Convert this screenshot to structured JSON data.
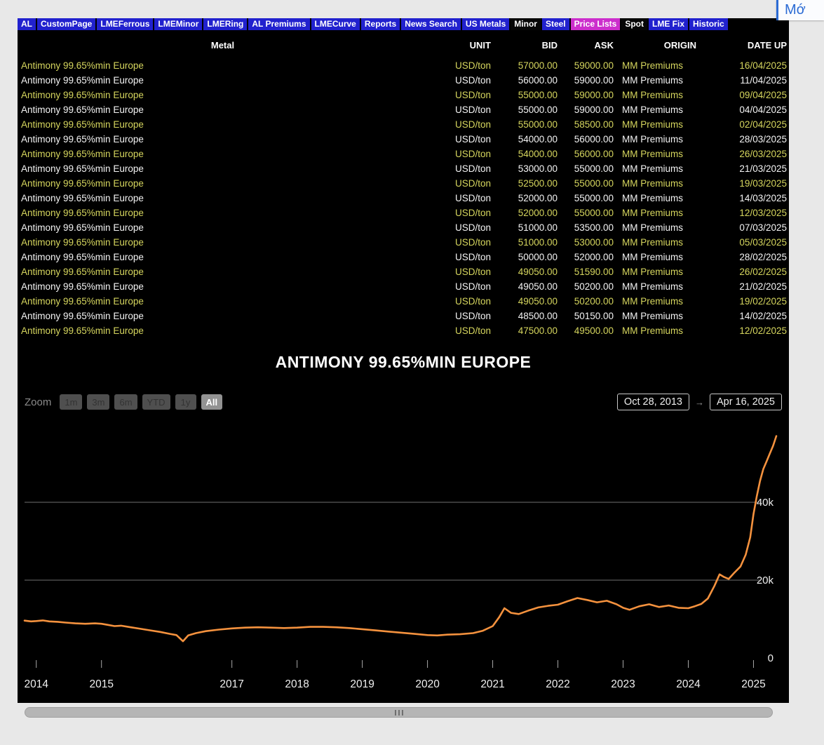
{
  "overlay": {
    "label": "Mớ"
  },
  "colors": {
    "nav_blue": "#2121ce",
    "nav_magenta": "#cc2ecc",
    "row_yellow": "#d6d65e",
    "line_orange": "#f5923e",
    "background": "#000000"
  },
  "navbar": {
    "tabs": [
      {
        "label": "AL",
        "variant": "blue"
      },
      {
        "label": "CustomPage",
        "variant": "blue"
      },
      {
        "label": "LMEFerrous",
        "variant": "blue"
      },
      {
        "label": "LMEMinor",
        "variant": "blue"
      },
      {
        "label": "LMERing",
        "variant": "blue"
      },
      {
        "label": "AL Premiums",
        "variant": "blue"
      },
      {
        "label": "LMECurve",
        "variant": "blue"
      },
      {
        "label": "Reports",
        "variant": "blue"
      },
      {
        "label": "News Search",
        "variant": "blue"
      },
      {
        "label": "US Metals",
        "variant": "blue"
      },
      {
        "label": "Minor",
        "variant": "dark"
      },
      {
        "label": "Steel",
        "variant": "blue"
      },
      {
        "label": "Price Lists",
        "variant": "magenta"
      },
      {
        "label": "Spot",
        "variant": "dark"
      },
      {
        "label": "LME Fix",
        "variant": "blue"
      },
      {
        "label": "Historic",
        "variant": "blue"
      }
    ]
  },
  "table": {
    "columns": [
      {
        "key": "metal",
        "label": "Metal"
      },
      {
        "key": "unit",
        "label": "UNIT"
      },
      {
        "key": "bid",
        "label": "BID"
      },
      {
        "key": "ask",
        "label": "ASK"
      },
      {
        "key": "origin",
        "label": "ORIGIN"
      },
      {
        "key": "date",
        "label": "DATE UP"
      }
    ],
    "rows": [
      {
        "metal": "Antimony 99.65%min Europe",
        "unit": "USD/ton",
        "bid": "57000.00",
        "ask": "59000.00",
        "origin": "MM Premiums",
        "date": "16/04/2025"
      },
      {
        "metal": "Antimony 99.65%min Europe",
        "unit": "USD/ton",
        "bid": "56000.00",
        "ask": "59000.00",
        "origin": "MM Premiums",
        "date": "11/04/2025"
      },
      {
        "metal": "Antimony 99.65%min Europe",
        "unit": "USD/ton",
        "bid": "55000.00",
        "ask": "59000.00",
        "origin": "MM Premiums",
        "date": "09/04/2025"
      },
      {
        "metal": "Antimony 99.65%min Europe",
        "unit": "USD/ton",
        "bid": "55000.00",
        "ask": "59000.00",
        "origin": "MM Premiums",
        "date": "04/04/2025"
      },
      {
        "metal": "Antimony 99.65%min Europe",
        "unit": "USD/ton",
        "bid": "55000.00",
        "ask": "58500.00",
        "origin": "MM Premiums",
        "date": "02/04/2025"
      },
      {
        "metal": "Antimony 99.65%min Europe",
        "unit": "USD/ton",
        "bid": "54000.00",
        "ask": "56000.00",
        "origin": "MM Premiums",
        "date": "28/03/2025"
      },
      {
        "metal": "Antimony 99.65%min Europe",
        "unit": "USD/ton",
        "bid": "54000.00",
        "ask": "56000.00",
        "origin": "MM Premiums",
        "date": "26/03/2025"
      },
      {
        "metal": "Antimony 99.65%min Europe",
        "unit": "USD/ton",
        "bid": "53000.00",
        "ask": "55000.00",
        "origin": "MM Premiums",
        "date": "21/03/2025"
      },
      {
        "metal": "Antimony 99.65%min Europe",
        "unit": "USD/ton",
        "bid": "52500.00",
        "ask": "55000.00",
        "origin": "MM Premiums",
        "date": "19/03/2025"
      },
      {
        "metal": "Antimony 99.65%min Europe",
        "unit": "USD/ton",
        "bid": "52000.00",
        "ask": "55000.00",
        "origin": "MM Premiums",
        "date": "14/03/2025"
      },
      {
        "metal": "Antimony 99.65%min Europe",
        "unit": "USD/ton",
        "bid": "52000.00",
        "ask": "55000.00",
        "origin": "MM Premiums",
        "date": "12/03/2025"
      },
      {
        "metal": "Antimony 99.65%min Europe",
        "unit": "USD/ton",
        "bid": "51000.00",
        "ask": "53500.00",
        "origin": "MM Premiums",
        "date": "07/03/2025"
      },
      {
        "metal": "Antimony 99.65%min Europe",
        "unit": "USD/ton",
        "bid": "51000.00",
        "ask": "53000.00",
        "origin": "MM Premiums",
        "date": "05/03/2025"
      },
      {
        "metal": "Antimony 99.65%min Europe",
        "unit": "USD/ton",
        "bid": "50000.00",
        "ask": "52000.00",
        "origin": "MM Premiums",
        "date": "28/02/2025"
      },
      {
        "metal": "Antimony 99.65%min Europe",
        "unit": "USD/ton",
        "bid": "49050.00",
        "ask": "51590.00",
        "origin": "MM Premiums",
        "date": "26/02/2025"
      },
      {
        "metal": "Antimony 99.65%min Europe",
        "unit": "USD/ton",
        "bid": "49050.00",
        "ask": "50200.00",
        "origin": "MM Premiums",
        "date": "21/02/2025"
      },
      {
        "metal": "Antimony 99.65%min Europe",
        "unit": "USD/ton",
        "bid": "49050.00",
        "ask": "50200.00",
        "origin": "MM Premiums",
        "date": "19/02/2025"
      },
      {
        "metal": "Antimony 99.65%min Europe",
        "unit": "USD/ton",
        "bid": "48500.00",
        "ask": "50150.00",
        "origin": "MM Premiums",
        "date": "14/02/2025"
      },
      {
        "metal": "Antimony 99.65%min Europe",
        "unit": "USD/ton",
        "bid": "47500.00",
        "ask": "49500.00",
        "origin": "MM Premiums",
        "date": "12/02/2025"
      }
    ]
  },
  "chart": {
    "zoom": {
      "label": "Zoom",
      "buttons": [
        {
          "label": "1m",
          "active": false
        },
        {
          "label": "3m",
          "active": false
        },
        {
          "label": "6m",
          "active": false
        },
        {
          "label": "YTD",
          "active": false
        },
        {
          "label": "1y",
          "active": false
        },
        {
          "label": "All",
          "active": true
        }
      ]
    },
    "range": {
      "from": "Oct 28, 2013",
      "to": "Apr 16, 2025",
      "arrow": "→"
    }
  },
  "chart_data": {
    "type": "line",
    "title": "ANTIMONY 99.65%MIN EUROPE",
    "xlabel": "",
    "ylabel": "",
    "x_range": [
      2013.82,
      2025.35
    ],
    "ylim": [
      0,
      60000
    ],
    "grid": "horizontal",
    "y_axis_side": "right",
    "legend": "none",
    "color": "#f5923e",
    "yticks": [
      {
        "value": 0,
        "label": "0"
      },
      {
        "value": 20000,
        "label": "20k"
      },
      {
        "value": 40000,
        "label": "40k"
      }
    ],
    "xticks": [
      2014,
      2015,
      2017,
      2018,
      2019,
      2020,
      2021,
      2022,
      2023,
      2024,
      2025
    ],
    "points": [
      [
        2013.82,
        9600
      ],
      [
        2013.92,
        9400
      ],
      [
        2014.0,
        9500
      ],
      [
        2014.1,
        9650
      ],
      [
        2014.2,
        9400
      ],
      [
        2014.33,
        9300
      ],
      [
        2014.45,
        9100
      ],
      [
        2014.6,
        8900
      ],
      [
        2014.75,
        8800
      ],
      [
        2014.9,
        8900
      ],
      [
        2015.0,
        8800
      ],
      [
        2015.1,
        8500
      ],
      [
        2015.2,
        8200
      ],
      [
        2015.3,
        8300
      ],
      [
        2015.45,
        7900
      ],
      [
        2015.6,
        7500
      ],
      [
        2015.75,
        7100
      ],
      [
        2015.9,
        6700
      ],
      [
        2016.05,
        6200
      ],
      [
        2016.15,
        5900
      ],
      [
        2016.25,
        4300
      ],
      [
        2016.33,
        5800
      ],
      [
        2016.45,
        6400
      ],
      [
        2016.6,
        6900
      ],
      [
        2016.8,
        7300
      ],
      [
        2017.0,
        7600
      ],
      [
        2017.2,
        7800
      ],
      [
        2017.4,
        7900
      ],
      [
        2017.6,
        7800
      ],
      [
        2017.8,
        7700
      ],
      [
        2018.0,
        7800
      ],
      [
        2018.2,
        8000
      ],
      [
        2018.4,
        8000
      ],
      [
        2018.6,
        7900
      ],
      [
        2018.8,
        7700
      ],
      [
        2019.0,
        7400
      ],
      [
        2019.2,
        7100
      ],
      [
        2019.4,
        6800
      ],
      [
        2019.6,
        6500
      ],
      [
        2019.8,
        6200
      ],
      [
        2020.0,
        5900
      ],
      [
        2020.15,
        5800
      ],
      [
        2020.3,
        6000
      ],
      [
        2020.5,
        6100
      ],
      [
        2020.7,
        6400
      ],
      [
        2020.85,
        7000
      ],
      [
        2021.0,
        8200
      ],
      [
        2021.1,
        10500
      ],
      [
        2021.18,
        12800
      ],
      [
        2021.28,
        11600
      ],
      [
        2021.4,
        11300
      ],
      [
        2021.55,
        12200
      ],
      [
        2021.7,
        13000
      ],
      [
        2021.85,
        13400
      ],
      [
        2022.0,
        13700
      ],
      [
        2022.15,
        14600
      ],
      [
        2022.3,
        15400
      ],
      [
        2022.45,
        14900
      ],
      [
        2022.6,
        14300
      ],
      [
        2022.75,
        14700
      ],
      [
        2022.9,
        13800
      ],
      [
        2023.0,
        12900
      ],
      [
        2023.1,
        12400
      ],
      [
        2023.25,
        13300
      ],
      [
        2023.4,
        13800
      ],
      [
        2023.55,
        13100
      ],
      [
        2023.7,
        13500
      ],
      [
        2023.85,
        12900
      ],
      [
        2024.0,
        12800
      ],
      [
        2024.1,
        13300
      ],
      [
        2024.2,
        13900
      ],
      [
        2024.3,
        15300
      ],
      [
        2024.4,
        18500
      ],
      [
        2024.48,
        21500
      ],
      [
        2024.55,
        20800
      ],
      [
        2024.62,
        20300
      ],
      [
        2024.7,
        21800
      ],
      [
        2024.8,
        23500
      ],
      [
        2024.88,
        26500
      ],
      [
        2024.95,
        31000
      ],
      [
        2025.0,
        37000
      ],
      [
        2025.05,
        41500
      ],
      [
        2025.1,
        45500
      ],
      [
        2025.15,
        48500
      ],
      [
        2025.2,
        50500
      ],
      [
        2025.25,
        52500
      ],
      [
        2025.3,
        54500
      ],
      [
        2025.35,
        57000
      ]
    ]
  }
}
